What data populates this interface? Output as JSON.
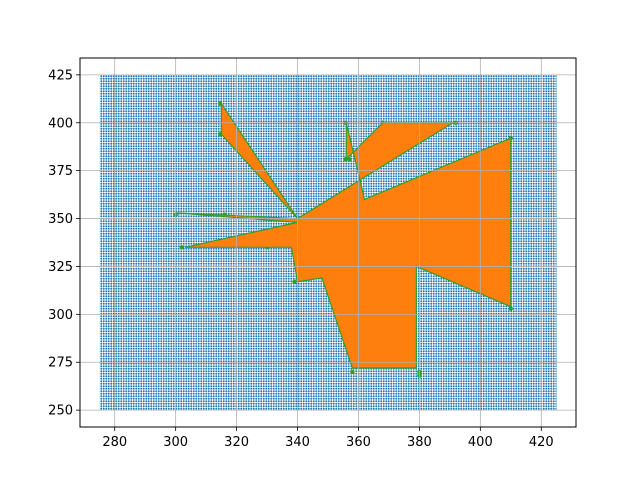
{
  "chart_data": {
    "type": "scatter",
    "title": "",
    "xlabel": "",
    "ylabel": "",
    "xlim": [
      268.6,
      431.4
    ],
    "ylim": [
      241.2,
      433.8
    ],
    "xticks": [
      280,
      300,
      320,
      340,
      360,
      380,
      400,
      420
    ],
    "yticks": [
      250,
      275,
      300,
      325,
      350,
      375,
      400,
      425
    ],
    "grid": true,
    "legend": "none",
    "series": [
      {
        "kind": "grid-points",
        "color": "#1f77b4",
        "x_range": [
          275,
          425
        ],
        "y_range": [
          250,
          425
        ],
        "step": 1
      },
      {
        "kind": "boundary-points",
        "color": "#2ca02c",
        "points": [
          [
            314.6,
            410
          ],
          [
            314.6,
            394
          ],
          [
            355.8,
            400
          ],
          [
            355.8,
            381
          ],
          [
            357,
            381
          ],
          [
            368,
            400
          ],
          [
            392,
            400
          ],
          [
            410,
            392
          ],
          [
            410,
            303
          ],
          [
            339,
            335
          ],
          [
            339,
            317
          ],
          [
            302,
            335
          ],
          [
            330,
            335
          ],
          [
            358,
            270
          ],
          [
            380,
            270
          ],
          [
            380,
            268
          ],
          [
            300,
            352
          ],
          [
            316,
            352
          ]
        ]
      },
      {
        "kind": "filled-polygon",
        "color": "#ff7f0e",
        "vertices": [
          [
            340,
            350
          ],
          [
            315,
            410
          ],
          [
            315,
            394
          ],
          [
            340,
            350
          ],
          [
            300,
            353
          ],
          [
            340,
            348
          ],
          [
            303,
            335
          ],
          [
            338,
            335
          ],
          [
            340,
            317
          ],
          [
            348,
            319
          ],
          [
            358,
            272
          ],
          [
            379,
            272
          ],
          [
            379,
            325
          ],
          [
            410,
            304
          ],
          [
            410,
            392
          ],
          [
            362,
            360
          ],
          [
            356,
            400
          ],
          [
            356,
            381
          ],
          [
            368,
            400
          ],
          [
            391,
            400
          ],
          [
            340,
            350
          ]
        ]
      }
    ]
  }
}
